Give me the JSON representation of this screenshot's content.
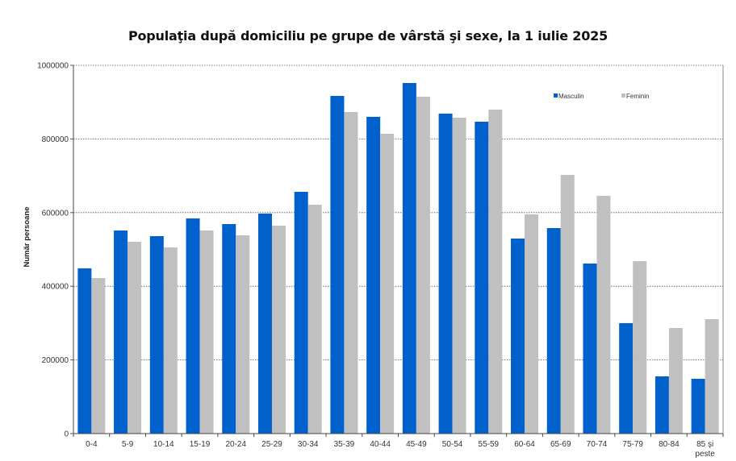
{
  "chart_data": {
    "type": "bar",
    "title": "Populaţia după domiciliu pe grupe de vârstă şi sexe, la 1 iulie 2025",
    "xlabel": "",
    "ylabel": "Număr persoane",
    "ylim": [
      0,
      1000000
    ],
    "yticks": [
      "0",
      "200000",
      "400000",
      "600000",
      "800000",
      "1000000"
    ],
    "grid": true,
    "legend_position": "top-right",
    "categories": [
      "0-4",
      "5-9",
      "10-14",
      "15-19",
      "20-24",
      "25-29",
      "30-34",
      "35-39",
      "40-44",
      "45-49",
      "50-54",
      "55-59",
      "60-64",
      "65-69",
      "70-74",
      "75-79",
      "80-84",
      "85 şi peste"
    ],
    "series": [
      {
        "name": "Masculin",
        "color": "#0060CC",
        "values": [
          448600,
          551400,
          536100,
          584200,
          568900,
          597400,
          656500,
          916800,
          860000,
          951900,
          868700,
          846800,
          529500,
          558000,
          461700,
          299800,
          155400,
          148800
        ]
      },
      {
        "name": "Feminin",
        "color": "#C0C0C0",
        "values": [
          422300,
          520800,
          505500,
          551400,
          538300,
          564600,
          621400,
          873100,
          814000,
          914700,
          857800,
          879600,
          595200,
          702400,
          645500,
          468300,
          286700,
          310700
        ]
      }
    ]
  }
}
